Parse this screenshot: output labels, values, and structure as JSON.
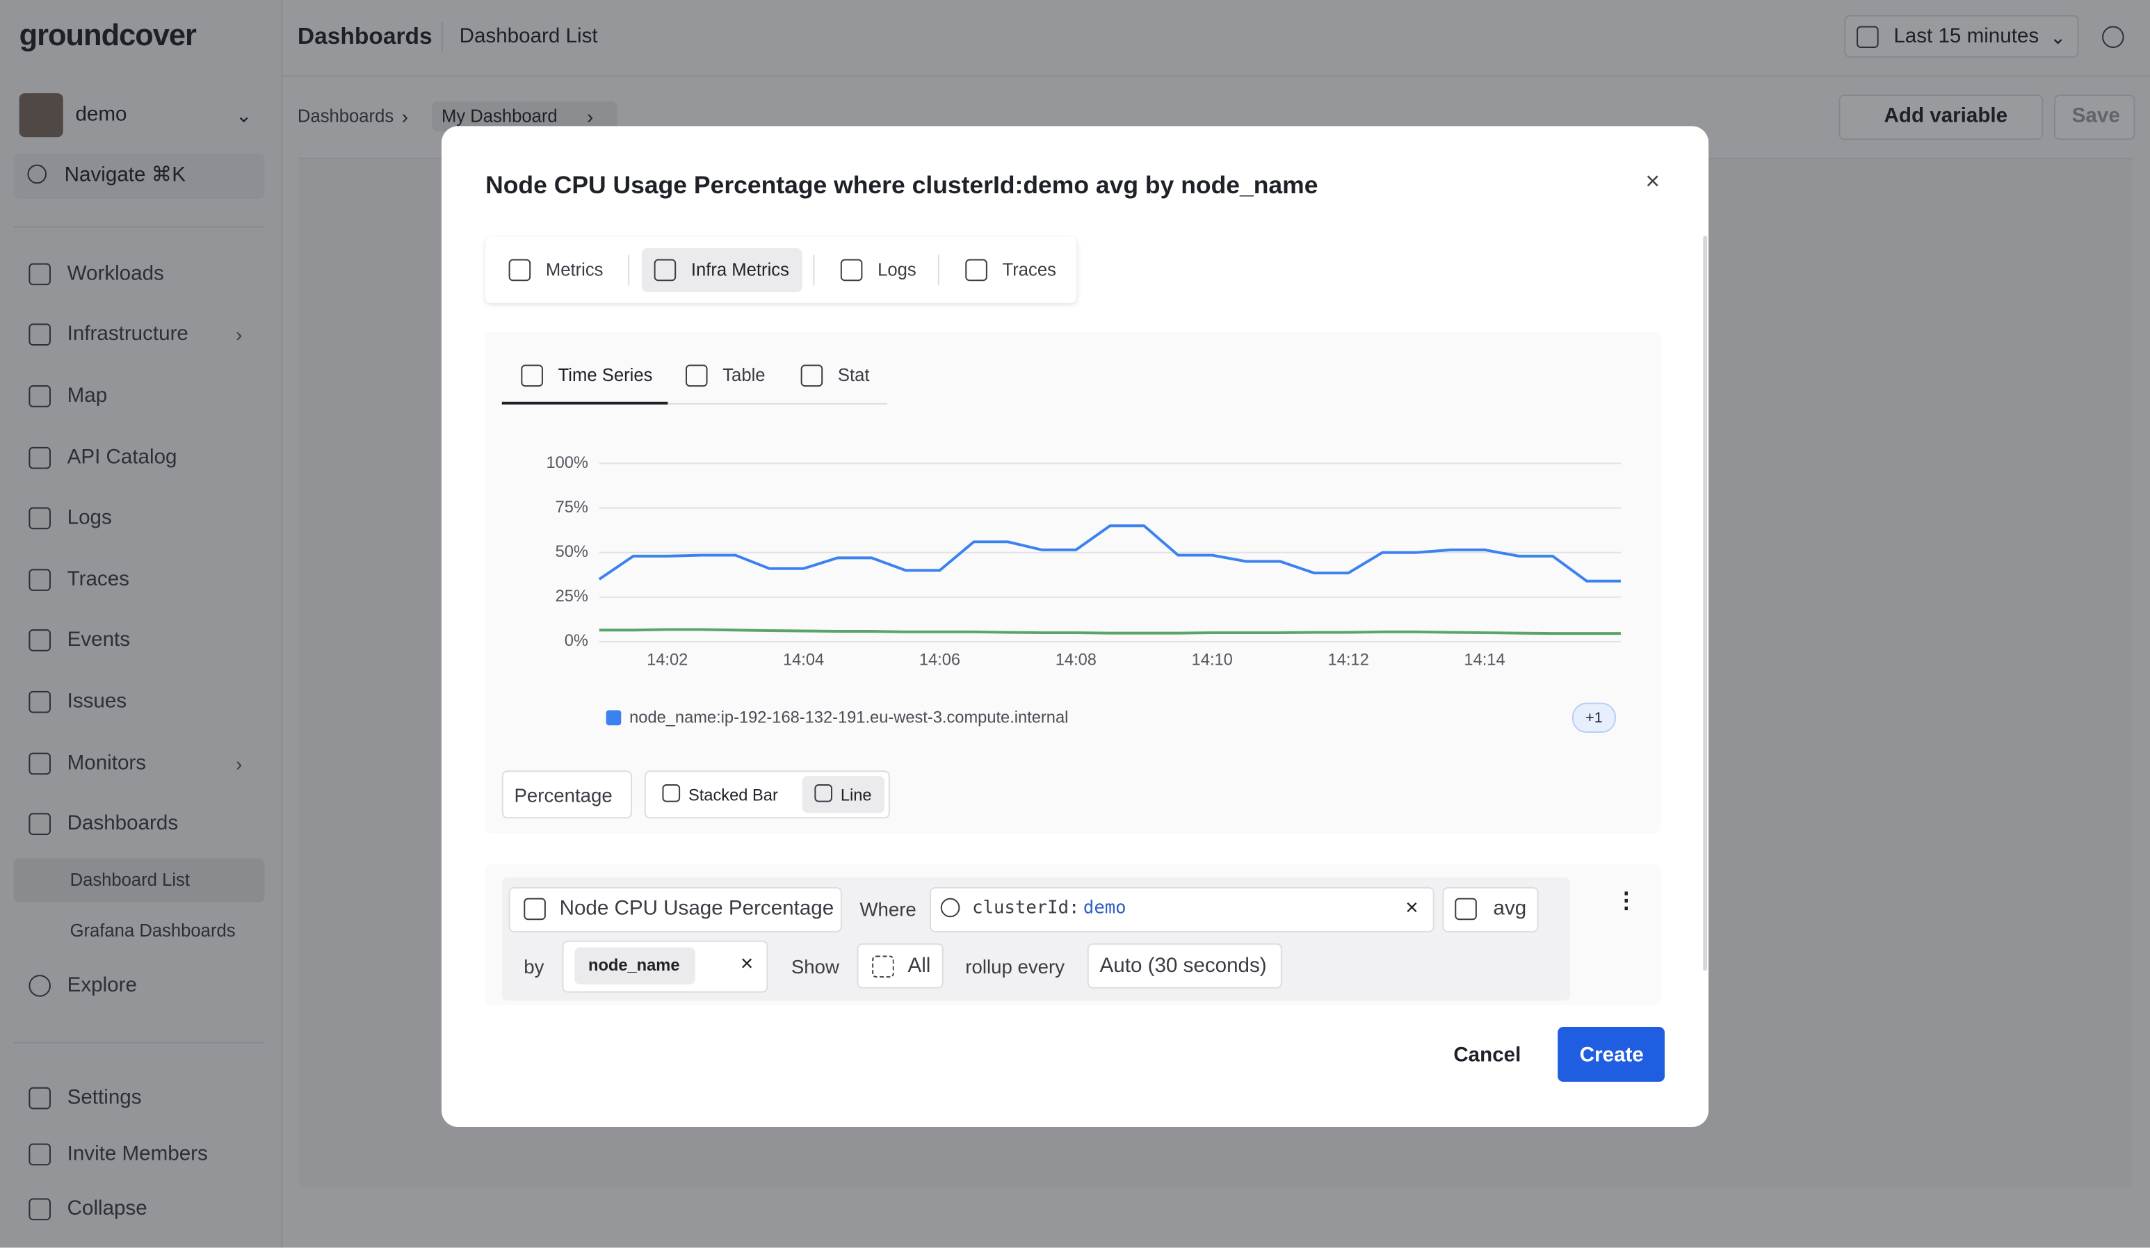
{
  "sidebar": {
    "brand": "groundcover",
    "user": "demo",
    "search": "Navigate ⌘K",
    "nav": [
      "Workloads",
      "Infrastructure",
      "Map",
      "API Catalog",
      "Logs",
      "Traces",
      "Events",
      "Issues",
      "Monitors",
      "Dashboards"
    ],
    "subnav": [
      "Dashboard List",
      "Grafana Dashboards"
    ],
    "explore": "Explore",
    "footer": [
      "Settings",
      "Invite Members",
      "Collapse"
    ]
  },
  "header": {
    "title": "Dashboards",
    "subtitle": "Dashboard List",
    "time_range": "Last 15 minutes"
  },
  "breadcrumb": [
    "Dashboards",
    "My Dashboard"
  ],
  "toolbar": {
    "add_variable": "Add variable",
    "save": "Save"
  },
  "modal": {
    "title": "Node CPU Usage Percentage where clusterId:demo avg by node_name",
    "source_tabs": [
      "Metrics",
      "Infra Metrics",
      "Logs",
      "Traces"
    ],
    "view_tabs": [
      "Time Series",
      "Table",
      "Stat"
    ],
    "unit": "Percentage",
    "display_modes": [
      "Stacked Bar",
      "Line"
    ],
    "query": {
      "metric": "Node CPU Usage Percentage",
      "where_label": "Where",
      "filter_key": "clusterId:",
      "filter_value": "demo",
      "aggregation": "avg",
      "by_label": "by",
      "group_by": "node_name",
      "show_label": "Show",
      "show_value": "All",
      "rollup_label": "rollup every",
      "rollup_value": "Auto (30 seconds)"
    },
    "buttons": {
      "cancel": "Cancel",
      "create": "Create"
    }
  },
  "chart_data": {
    "type": "line",
    "categories": [
      null,
      null,
      "14:02",
      null,
      null,
      null,
      "14:04",
      null,
      null,
      null,
      "14:06",
      null,
      null,
      null,
      "14:08",
      null,
      null,
      null,
      "14:10",
      null,
      null,
      null,
      "14:12",
      null,
      null,
      null,
      "14:14",
      null,
      null,
      null,
      null
    ],
    "series": [
      {
        "name": "node_name:ip-192-168-132-191.eu-west-3.compute.internal",
        "color": "#3b82f0",
        "values": [
          35,
          48,
          48,
          48.5,
          48.5,
          41,
          41,
          47,
          47,
          40,
          40,
          56,
          56,
          51.5,
          51.5,
          65,
          65,
          48.5,
          48.5,
          45,
          45,
          38.5,
          38.5,
          50,
          50,
          51.5,
          51.5,
          48,
          48,
          34,
          34
        ]
      },
      {
        "color": "#5aa469",
        "values": [
          6.5,
          6.5,
          6.8,
          6.8,
          6.5,
          6.2,
          6,
          5.8,
          5.8,
          5.5,
          5.5,
          5.5,
          5.2,
          5,
          5,
          4.8,
          4.8,
          4.8,
          5,
          5,
          5,
          5.2,
          5.2,
          5.5,
          5.5,
          5.2,
          5,
          4.8,
          4.6,
          4.6,
          4.6
        ]
      }
    ],
    "ylim": [
      0,
      100
    ],
    "yticks": [
      {
        "value": 0,
        "label": "0%"
      },
      {
        "value": 25,
        "label": "25%"
      },
      {
        "value": 50,
        "label": "50%"
      },
      {
        "value": 75,
        "label": "75%"
      },
      {
        "value": 100,
        "label": "100%"
      }
    ],
    "grid": true,
    "legend_overflow": "+1"
  }
}
